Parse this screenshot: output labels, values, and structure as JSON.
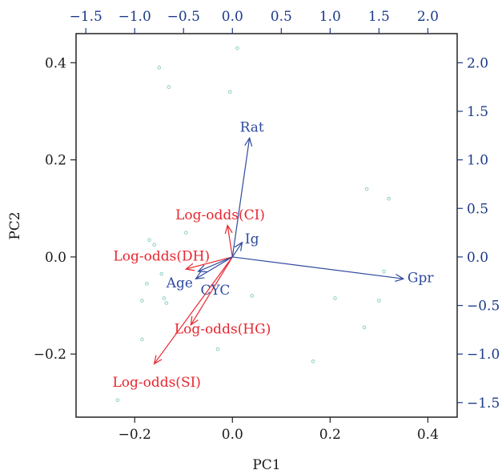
{
  "chart_data": {
    "type": "biplot",
    "xlabel": "PC1",
    "ylabel": "PC2",
    "xlim": [
      -0.32,
      0.46
    ],
    "ylim": [
      -0.33,
      0.46
    ],
    "x_ticks": [
      -0.2,
      0.0,
      0.2,
      0.4
    ],
    "y_ticks": [
      -0.2,
      0.0,
      0.2,
      0.4
    ],
    "x_tick_labels": [
      "−0.2",
      "0.0",
      "0.2",
      "0.4"
    ],
    "y_tick_labels": [
      "−0.2",
      "0.0",
      "0.2",
      "0.4"
    ],
    "top_axis": {
      "ticks": [
        -1.5,
        -1.0,
        -0.5,
        0.0,
        0.5,
        1.0,
        1.5,
        2.0
      ],
      "tick_labels": [
        "−1.5",
        "−1.0",
        "−0.5",
        "0.0",
        "0.5",
        "1.0",
        "1.5",
        "2.0"
      ],
      "lim": [
        -1.6,
        2.3
      ],
      "color": "#1a3a8a"
    },
    "right_axis": {
      "ticks": [
        -1.5,
        -1.0,
        -0.5,
        0.0,
        0.5,
        1.0,
        1.5,
        2.0
      ],
      "tick_labels": [
        "−1.5",
        "−1.0",
        "−0.5",
        "0.0",
        "0.5",
        "1.0",
        "1.5",
        "2.0"
      ],
      "lim": [
        -1.65,
        2.3
      ],
      "color": "#1a3a8a"
    },
    "points": [
      {
        "x": -0.15,
        "y": 0.39
      },
      {
        "x": 0.01,
        "y": 0.43
      },
      {
        "x": -0.13,
        "y": 0.35
      },
      {
        "x": -0.005,
        "y": 0.34
      },
      {
        "x": 0.275,
        "y": 0.14
      },
      {
        "x": 0.32,
        "y": 0.12
      },
      {
        "x": -0.17,
        "y": 0.035
      },
      {
        "x": -0.16,
        "y": 0.025
      },
      {
        "x": -0.095,
        "y": 0.05
      },
      {
        "x": 0.31,
        "y": -0.03
      },
      {
        "x": -0.175,
        "y": -0.055
      },
      {
        "x": -0.145,
        "y": -0.035
      },
      {
        "x": -0.14,
        "y": -0.085
      },
      {
        "x": -0.135,
        "y": -0.095
      },
      {
        "x": -0.185,
        "y": -0.09
      },
      {
        "x": 0.04,
        "y": -0.08
      },
      {
        "x": 0.21,
        "y": -0.085
      },
      {
        "x": 0.3,
        "y": -0.09
      },
      {
        "x": 0.27,
        "y": -0.145
      },
      {
        "x": -0.185,
        "y": -0.17
      },
      {
        "x": -0.03,
        "y": -0.19
      },
      {
        "x": 0.165,
        "y": -0.215
      },
      {
        "x": -0.235,
        "y": -0.295
      }
    ],
    "point_color": "#8fcfc6",
    "arrow_origin": [
      0.0,
      0.0
    ],
    "variable_arrows": [
      {
        "label": "Rat",
        "x": 0.035,
        "y": 0.245,
        "label_x": 0.04,
        "label_y": 0.265,
        "color": "#2e4a9e"
      },
      {
        "label": "Gpr",
        "x": 0.35,
        "y": -0.045,
        "label_x": 0.385,
        "label_y": -0.045,
        "color": "#2e4a9e"
      },
      {
        "label": "Ig",
        "x": 0.02,
        "y": 0.03,
        "label_x": 0.04,
        "label_y": 0.035,
        "color": "#2e4a9e"
      },
      {
        "label": "Age",
        "x": -0.07,
        "y": -0.03,
        "label_x": -0.108,
        "label_y": -0.055,
        "color": "#2e4a9e"
      },
      {
        "label": "CYC",
        "x": -0.075,
        "y": -0.045,
        "label_x": -0.035,
        "label_y": -0.07,
        "color": "#2e4a9e"
      }
    ],
    "response_arrows": [
      {
        "label": "Log-odds(CI)",
        "x": -0.01,
        "y": 0.065,
        "label_x": -0.025,
        "label_y": 0.085,
        "color": "#e8262e"
      },
      {
        "label": "Log-odds(DH)",
        "x": -0.095,
        "y": -0.025,
        "label_x": -0.145,
        "label_y": 0.0,
        "color": "#e8262e"
      },
      {
        "label": "Log-odds(HG)",
        "x": -0.085,
        "y": -0.14,
        "label_x": -0.02,
        "label_y": -0.15,
        "color": "#e8262e"
      },
      {
        "label": "Log-odds(SI)",
        "x": -0.16,
        "y": -0.22,
        "label_x": -0.155,
        "label_y": -0.26,
        "color": "#e8262e"
      }
    ]
  }
}
